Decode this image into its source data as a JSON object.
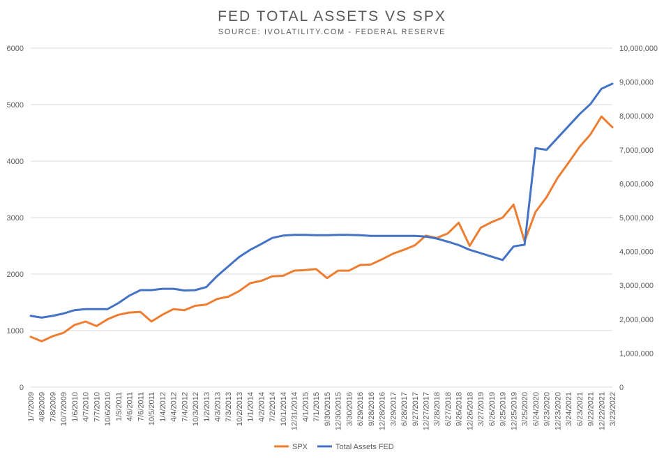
{
  "chart_data": {
    "type": "line",
    "title": "FED TOTAL ASSETS VS SPX",
    "subtitle": "SOURCE: IVOLATILITY.COM - FEDERAL RESERVE",
    "grid": true,
    "legend_position": "bottom",
    "legend": [
      "SPX",
      "Total Assets FED"
    ],
    "y_left": {
      "min": 0,
      "max": 6000,
      "ticks": [
        "0",
        "1000",
        "2000",
        "3000",
        "4000",
        "5000",
        "6000"
      ]
    },
    "y_right": {
      "min": 0,
      "max": 10000000,
      "ticks": [
        "0",
        "1,000,000",
        "2,000,000",
        "3,000,000",
        "4,000,000",
        "5,000,000",
        "6,000,000",
        "7,000,000",
        "8,000,000",
        "9,000,000",
        "10,000,000"
      ]
    },
    "x_ticks": [
      "1/7/2009",
      "4/8/2009",
      "7/8/2009",
      "10/7/2009",
      "1/6/2010",
      "4/7/2010",
      "7/7/2010",
      "10/6/2010",
      "1/5/2011",
      "4/6/2011",
      "7/6/2011",
      "10/5/2011",
      "1/4/2012",
      "4/4/2012",
      "7/4/2012",
      "10/3/2012",
      "1/2/2013",
      "4/3/2013",
      "7/3/2013",
      "10/2/2013",
      "1/1/2014",
      "4/2/2014",
      "7/2/2014",
      "10/1/2014",
      "12/31/2014",
      "4/1/2015",
      "7/1/2015",
      "9/30/2015",
      "12/30/2015",
      "3/30/2016",
      "6/29/2016",
      "9/28/2016",
      "12/28/2016",
      "3/29/2017",
      "6/28/2017",
      "9/27/2017",
      "12/27/2017",
      "3/28/2018",
      "6/27/2018",
      "9/26/2018",
      "12/26/2018",
      "3/27/2019",
      "6/26/2019",
      "9/25/2019",
      "12/25/2019",
      "3/25/2020",
      "6/24/2020",
      "9/23/2020",
      "12/23/2020",
      "3/24/2021",
      "6/23/2021",
      "9/22/2021",
      "12/22/2021",
      "3/23/2022"
    ],
    "series": [
      {
        "name": "SPX",
        "axis": "left",
        "color": "#ed7d31",
        "values": [
          890,
          810,
          900,
          960,
          1100,
          1160,
          1080,
          1200,
          1280,
          1320,
          1330,
          1160,
          1280,
          1380,
          1360,
          1440,
          1460,
          1560,
          1600,
          1700,
          1840,
          1880,
          1960,
          1970,
          2060,
          2070,
          2090,
          1930,
          2060,
          2060,
          2160,
          2170,
          2260,
          2360,
          2430,
          2510,
          2680,
          2640,
          2720,
          2910,
          2500,
          2820,
          2920,
          3000,
          3230,
          2580,
          3100,
          3360,
          3700,
          3970,
          4250,
          4470,
          4790,
          4600
        ]
      },
      {
        "name": "Total Assets FED",
        "axis": "right",
        "color": "#4472c4",
        "values": [
          2100000,
          2050000,
          2100000,
          2170000,
          2270000,
          2300000,
          2300000,
          2300000,
          2480000,
          2700000,
          2860000,
          2860000,
          2900000,
          2900000,
          2850000,
          2860000,
          2950000,
          3280000,
          3560000,
          3840000,
          4050000,
          4220000,
          4400000,
          4470000,
          4490000,
          4490000,
          4480000,
          4480000,
          4490000,
          4490000,
          4480000,
          4460000,
          4460000,
          4460000,
          4460000,
          4460000,
          4440000,
          4380000,
          4290000,
          4190000,
          4050000,
          3950000,
          3850000,
          3750000,
          4150000,
          4200000,
          7050000,
          7000000,
          7350000,
          7700000,
          8050000,
          8350000,
          8800000,
          8950000
        ]
      }
    ]
  }
}
